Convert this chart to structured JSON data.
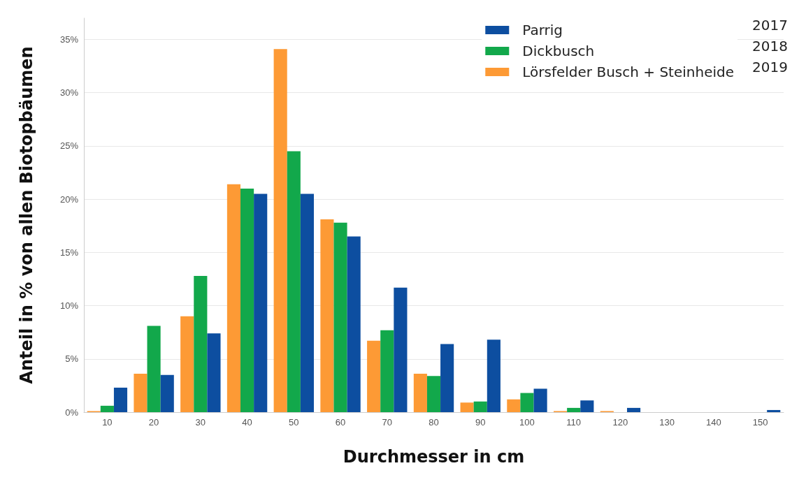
{
  "chart_data": {
    "type": "bar",
    "xlabel": "Durchmesser in cm",
    "ylabel": "Anteil in % von allen Biotopbäumen",
    "categories": [
      "10",
      "20",
      "30",
      "40",
      "50",
      "60",
      "70",
      "80",
      "90",
      "100",
      "110",
      "120",
      "130",
      "140",
      "150"
    ],
    "series": [
      {
        "name": "Lörsfelder Busch + Steinheide",
        "color": "#fd9a35",
        "values": [
          0.1,
          3.6,
          9.0,
          21.4,
          34.1,
          18.1,
          6.7,
          3.6,
          0.9,
          1.2,
          0.1,
          0.1,
          0,
          0,
          0
        ]
      },
      {
        "name": "Dickbusch",
        "color": "#12a84b",
        "values": [
          0.6,
          8.1,
          12.8,
          21.0,
          24.5,
          17.8,
          7.7,
          3.4,
          1.0,
          1.8,
          0.4,
          0,
          0,
          0,
          0
        ]
      },
      {
        "name": "Parrig",
        "color": "#0d4ea0",
        "values": [
          2.3,
          3.5,
          7.4,
          20.5,
          20.5,
          16.5,
          11.7,
          6.4,
          6.8,
          2.2,
          1.1,
          0.4,
          0,
          0,
          0.2
        ]
      }
    ],
    "annotations": [
      "2019",
      "2018",
      "2017"
    ],
    "ylim": [
      0,
      37
    ],
    "yticks": [
      {
        "value": 0,
        "label": "0%"
      },
      {
        "value": 5,
        "label": "5%"
      },
      {
        "value": 10,
        "label": "10%"
      },
      {
        "value": 15,
        "label": "15%"
      },
      {
        "value": 20,
        "label": "20%"
      },
      {
        "value": 25,
        "label": "25%"
      },
      {
        "value": 30,
        "label": "30%"
      },
      {
        "value": 35,
        "label": "35%"
      }
    ],
    "grid": "y",
    "legend": "top right"
  }
}
